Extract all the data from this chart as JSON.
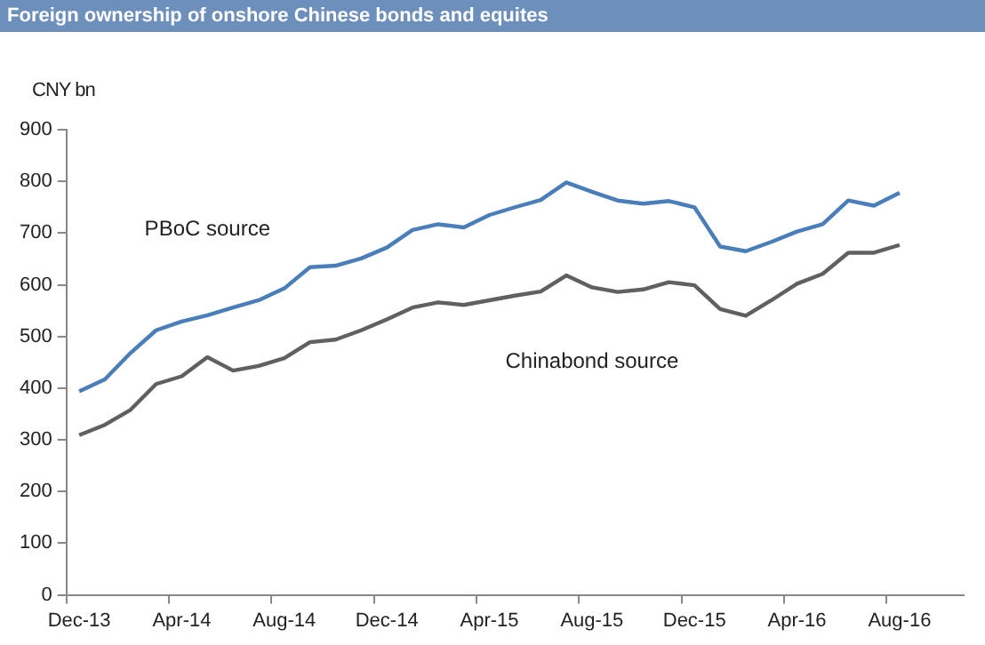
{
  "chart_data": {
    "type": "line",
    "title": "Foreign ownership of onshore Chinese bonds and equites",
    "ylabel": "CNY bn",
    "categories": [
      "Dec-13",
      null,
      null,
      null,
      "Apr-14",
      null,
      null,
      null,
      "Aug-14",
      null,
      null,
      null,
      "Dec-14",
      null,
      null,
      null,
      "Apr-15",
      null,
      null,
      null,
      "Aug-15",
      null,
      null,
      null,
      "Dec-15",
      null,
      null,
      null,
      "Apr-16",
      null,
      null,
      null,
      "Aug-16",
      null,
      null
    ],
    "series": [
      {
        "name": "PBoC source",
        "color": "#4a7ebb",
        "values": [
          394,
          417,
          468,
          512,
          529,
          541,
          556,
          570,
          593,
          634,
          637,
          651,
          672,
          706,
          717,
          711,
          735,
          750,
          764,
          798,
          780,
          763,
          757,
          762,
          750,
          674,
          665,
          683,
          703,
          717,
          763,
          753,
          778,
          null,
          null
        ]
      },
      {
        "name": "Chinabond source",
        "color": "#606060",
        "values": [
          309,
          329,
          358,
          408,
          423,
          460,
          434,
          443,
          458,
          489,
          494,
          512,
          533,
          556,
          566,
          561,
          570,
          579,
          587,
          618,
          595,
          586,
          591,
          605,
          599,
          553,
          540,
          570,
          602,
          621,
          662,
          662,
          677,
          null,
          null
        ]
      }
    ],
    "ylim": [
      0,
      900
    ],
    "yticks": [
      0,
      100,
      200,
      300,
      400,
      500,
      600,
      700,
      800,
      900
    ],
    "grid": false,
    "legend": false,
    "marker": "none",
    "line_style": "solid"
  }
}
